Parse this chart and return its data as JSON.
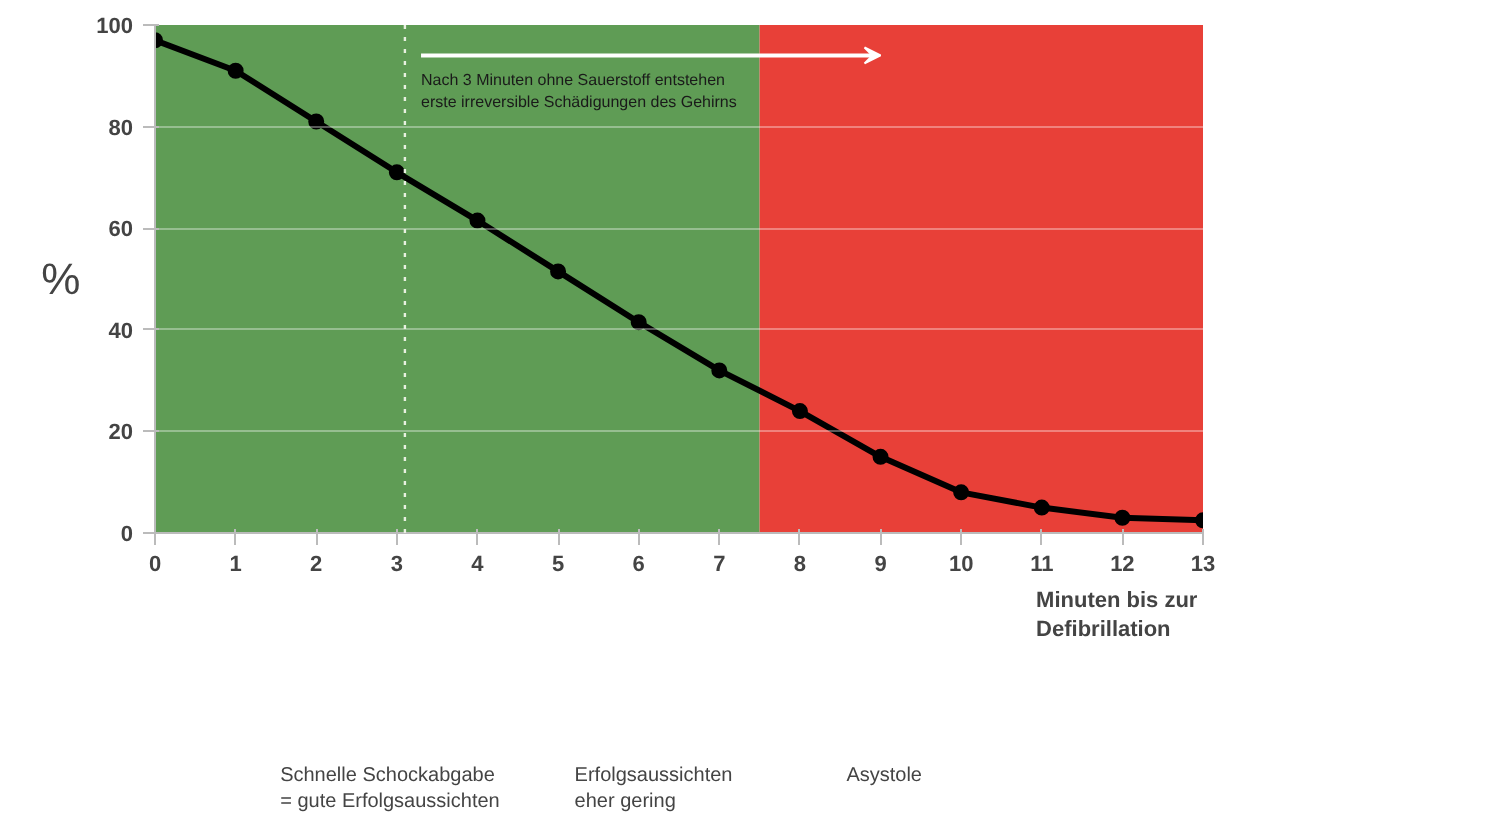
{
  "chart_data": {
    "type": "line",
    "ylabel": "%",
    "xlabel": "Minuten bis zur\nDefibrillation",
    "x": [
      0,
      1,
      2,
      3,
      4,
      5,
      6,
      7,
      8,
      9,
      10,
      11,
      12,
      13
    ],
    "series": [
      {
        "color": "#000000",
        "values": [
          97,
          91,
          81,
          71,
          61.5,
          51.5,
          41.5,
          32,
          24,
          15,
          8,
          5,
          3,
          2.5
        ]
      }
    ],
    "xlim": [
      0,
      13
    ],
    "xticks": [
      0,
      1,
      2,
      3,
      4,
      5,
      6,
      7,
      8,
      9,
      10,
      11,
      12,
      13
    ],
    "ylim": [
      0,
      100
    ],
    "yticks": [
      0,
      20,
      40,
      60,
      80,
      100
    ],
    "grid": "y",
    "marker": "circle",
    "line_style": "solid",
    "bands": [
      {
        "axis": "x",
        "from": 0,
        "to": 7.5,
        "color": "#5f9c55"
      },
      {
        "axis": "x",
        "from": 7.5,
        "to": 13,
        "color": "#e84038"
      }
    ],
    "ref_lines": [
      {
        "axis": "x",
        "value": 3.1,
        "color": "#e8f0e0",
        "line_style": "dotted"
      }
    ],
    "annotations": [
      "Nach 3 Minuten ohne Sauerstoff entstehen\nerste irreversible Schädigungen des Gehirns",
      "Schnelle Schockabgabe\n= gute Erfolgsaussichten",
      "Erfolgsaussichten\neher gering",
      "Asystole"
    ]
  }
}
